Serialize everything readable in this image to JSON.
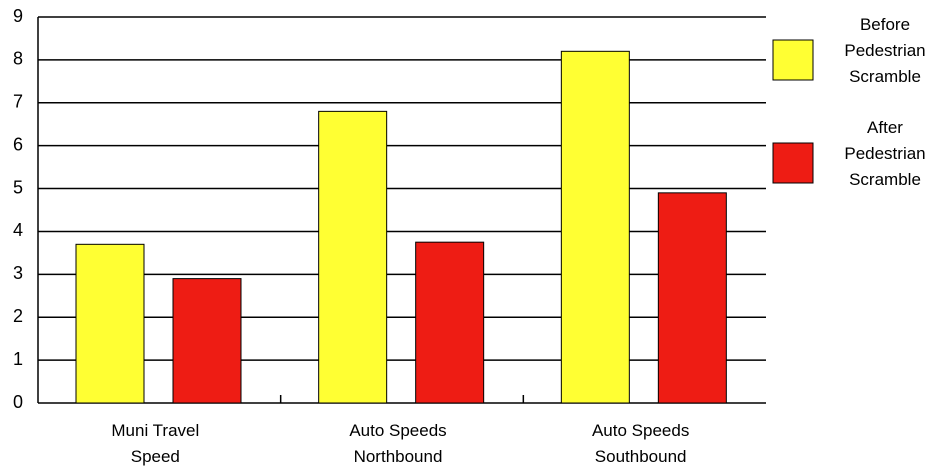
{
  "chart_data": {
    "type": "bar",
    "categories": [
      "Muni Travel Speed",
      "Auto Speeds Northbound",
      "Auto Speeds Southbound"
    ],
    "series": [
      {
        "name": "Before Pedestrian Scramble",
        "color": "#ffff33",
        "values": [
          3.7,
          6.8,
          8.2
        ]
      },
      {
        "name": "After Pedestrian Scramble",
        "color": "#ee1c14",
        "values": [
          2.9,
          3.75,
          4.9
        ]
      }
    ],
    "ylim": [
      0,
      9
    ],
    "yticks": [
      0,
      1,
      2,
      3,
      4,
      5,
      6,
      7,
      8,
      9
    ],
    "grid": true,
    "legend": "right"
  }
}
